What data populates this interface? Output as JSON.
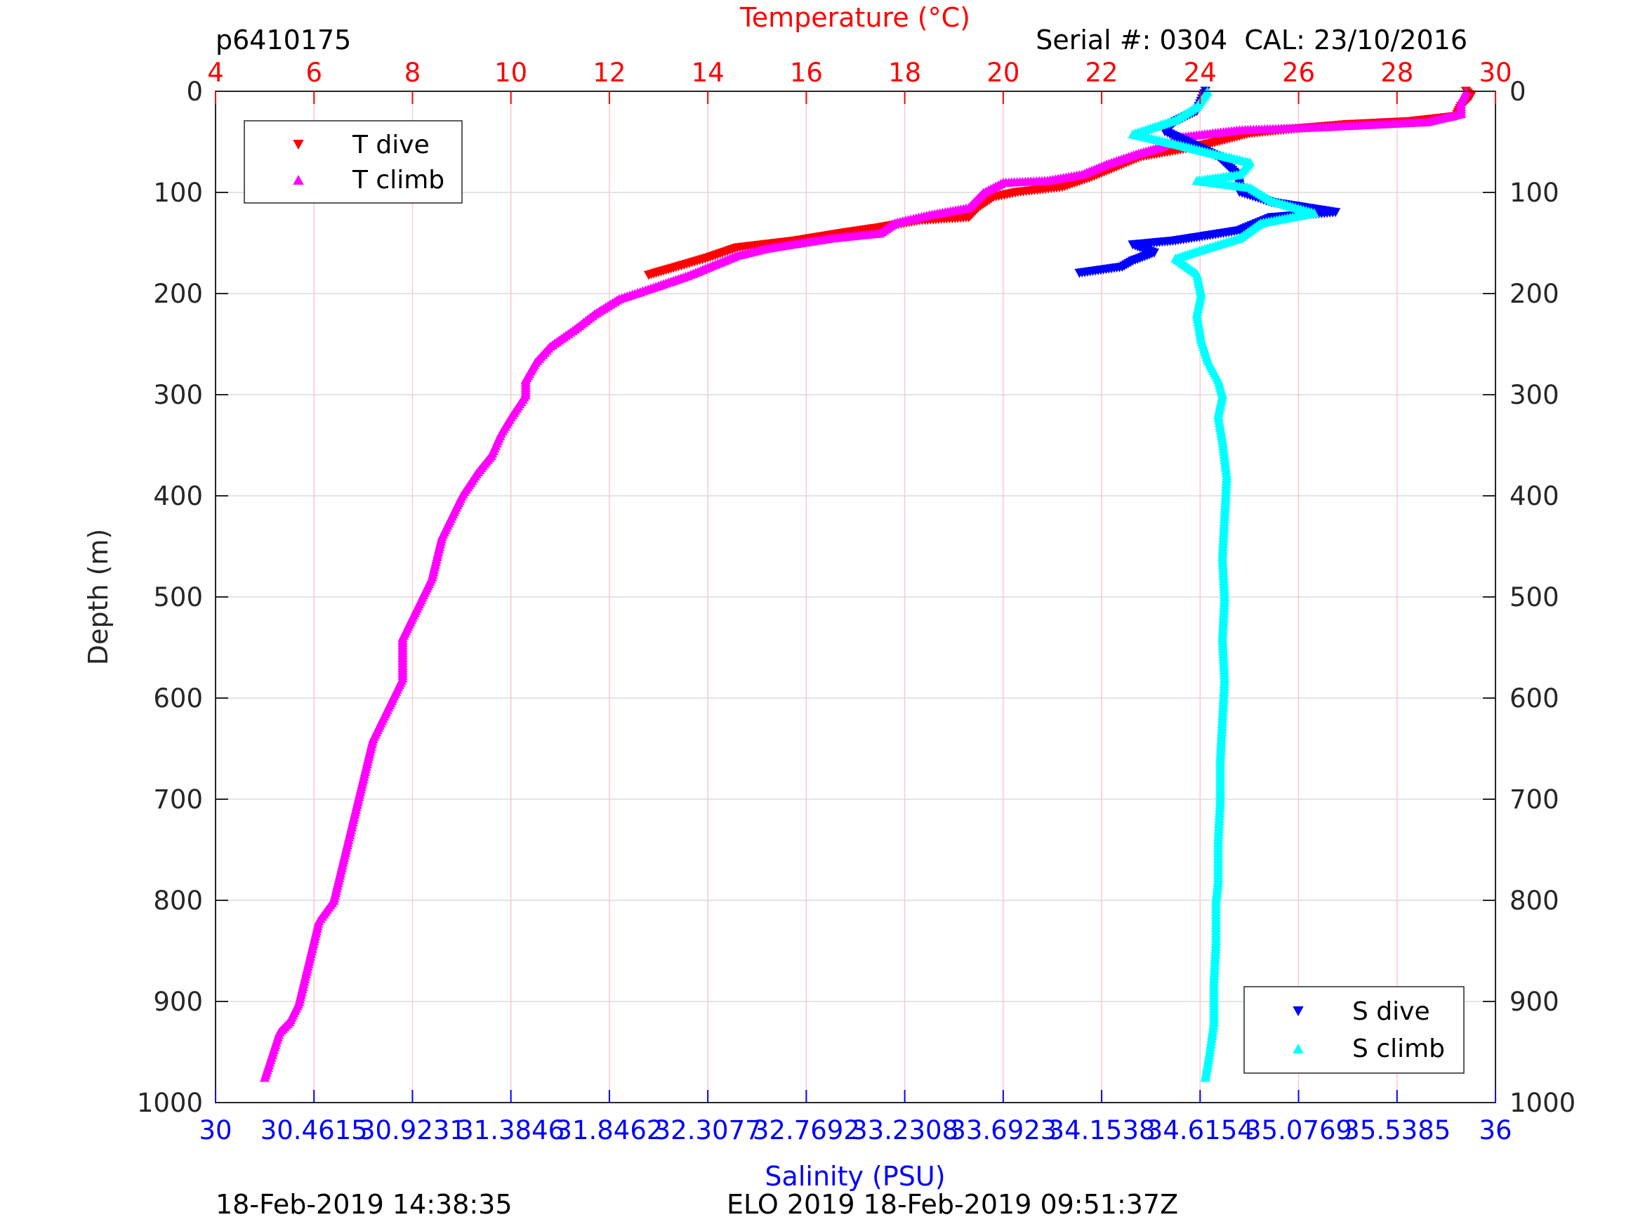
{
  "header": {
    "profile_id": "p6410175",
    "serial_cal": "Serial #: 0304  CAL: 23/10/2016"
  },
  "footer": {
    "left_timestamp": "18-Feb-2019 14:38:35",
    "mission_stamp": "ELO 2019 18-Feb-2019 09:51:37Z"
  },
  "colors": {
    "t_dive": "#ff0000",
    "t_climb": "#ff00ff",
    "s_dive": "#0000ff",
    "s_climb": "#00ffff",
    "temperature_axis": "#ff0000",
    "salinity_axis": "#0000ff",
    "depth_axis": "#262626"
  },
  "chart_data": {
    "type": "scatter",
    "y_axis": {
      "label": "Depth (m)",
      "range": [
        0,
        1000
      ],
      "reversed": true,
      "ticks": [
        "0",
        "100",
        "200",
        "300",
        "400",
        "500",
        "600",
        "700",
        "800",
        "900",
        "1000"
      ],
      "tick_values": [
        0,
        100,
        200,
        300,
        400,
        500,
        600,
        700,
        800,
        900,
        1000
      ],
      "mirrored_right": true
    },
    "x_top": {
      "label": "Temperature (°C)",
      "range": [
        4,
        30
      ],
      "ticks": [
        "4",
        "6",
        "8",
        "10",
        "12",
        "14",
        "16",
        "18",
        "20",
        "22",
        "24",
        "26",
        "28",
        "30"
      ],
      "tick_values": [
        4,
        6,
        8,
        10,
        12,
        14,
        16,
        18,
        20,
        22,
        24,
        26,
        28,
        30
      ]
    },
    "x_bottom": {
      "label": "Salinity (PSU)",
      "range": [
        30,
        36
      ],
      "ticks": [
        "30",
        "30.4615",
        "30.9231",
        "31.3846",
        "31.8462",
        "32.3077",
        "32.7692",
        "33.2308",
        "33.6923",
        "34.1538",
        "34.6154",
        "35.0769",
        "35.5385",
        "36"
      ],
      "tick_values": [
        30,
        30.4615,
        30.9231,
        31.3846,
        31.8462,
        32.3077,
        32.7692,
        33.2308,
        33.6923,
        34.1538,
        34.6154,
        35.0769,
        35.5385,
        36
      ]
    },
    "grid": true,
    "legend_temperature": {
      "position": "top-left",
      "entries": [
        "T dive",
        "T climb"
      ]
    },
    "legend_salinity": {
      "position": "bottom-right",
      "entries": [
        "S dive",
        "S climb"
      ]
    },
    "series": [
      {
        "name": "T dive",
        "axis": "x_top",
        "marker": "triangle-down",
        "points": [
          [
            29.4,
            0
          ],
          [
            29.5,
            5
          ],
          [
            29.3,
            15
          ],
          [
            29.2,
            25
          ],
          [
            28.3,
            30
          ],
          [
            27.0,
            33
          ],
          [
            25.8,
            38
          ],
          [
            25.0,
            42
          ],
          [
            24.6,
            47
          ],
          [
            24.2,
            52
          ],
          [
            23.6,
            58
          ],
          [
            22.8,
            65
          ],
          [
            22.3,
            75
          ],
          [
            21.8,
            85
          ],
          [
            21.2,
            95
          ],
          [
            20.3,
            100
          ],
          [
            19.8,
            105
          ],
          [
            19.5,
            115
          ],
          [
            19.3,
            125
          ],
          [
            18.3,
            128
          ],
          [
            17.5,
            135
          ],
          [
            16.8,
            140
          ],
          [
            15.8,
            148
          ],
          [
            14.6,
            155
          ],
          [
            14.0,
            165
          ],
          [
            13.3,
            175
          ],
          [
            12.8,
            182
          ]
        ]
      },
      {
        "name": "T climb",
        "axis": "x_top",
        "marker": "triangle-up",
        "points": [
          [
            29.4,
            0
          ],
          [
            29.3,
            10
          ],
          [
            29.3,
            22
          ],
          [
            28.6,
            30
          ],
          [
            26.5,
            35
          ],
          [
            24.8,
            38
          ],
          [
            23.6,
            45
          ],
          [
            23.2,
            55
          ],
          [
            22.7,
            62
          ],
          [
            22.1,
            72
          ],
          [
            21.6,
            82
          ],
          [
            20.9,
            88
          ],
          [
            20.0,
            90
          ],
          [
            19.8,
            95
          ],
          [
            19.6,
            100
          ],
          [
            19.3,
            115
          ],
          [
            18.5,
            122
          ],
          [
            17.8,
            130
          ],
          [
            17.5,
            140
          ],
          [
            16.5,
            145
          ],
          [
            15.2,
            155
          ],
          [
            14.6,
            162
          ],
          [
            14.1,
            172
          ],
          [
            13.6,
            182
          ],
          [
            13.0,
            192
          ],
          [
            12.2,
            205
          ],
          [
            11.7,
            220
          ],
          [
            11.3,
            235
          ],
          [
            10.8,
            252
          ],
          [
            10.5,
            268
          ],
          [
            10.3,
            285
          ],
          [
            10.3,
            300
          ],
          [
            10.0,
            322
          ],
          [
            9.8,
            338
          ],
          [
            9.6,
            360
          ],
          [
            9.3,
            378
          ],
          [
            9.0,
            400
          ],
          [
            8.8,
            420
          ],
          [
            8.6,
            440
          ],
          [
            8.5,
            460
          ],
          [
            8.4,
            480
          ],
          [
            8.2,
            500
          ],
          [
            8.0,
            520
          ],
          [
            7.8,
            540
          ],
          [
            7.8,
            560
          ],
          [
            7.8,
            580
          ],
          [
            7.6,
            600
          ],
          [
            7.4,
            620
          ],
          [
            7.2,
            640
          ],
          [
            7.1,
            660
          ],
          [
            7.0,
            680
          ],
          [
            6.9,
            700
          ],
          [
            6.8,
            720
          ],
          [
            6.7,
            740
          ],
          [
            6.6,
            760
          ],
          [
            6.5,
            780
          ],
          [
            6.4,
            800
          ],
          [
            6.1,
            820
          ],
          [
            6.0,
            840
          ],
          [
            5.9,
            860
          ],
          [
            5.8,
            880
          ],
          [
            5.7,
            900
          ],
          [
            5.5,
            920
          ],
          [
            5.3,
            930
          ],
          [
            5.2,
            945
          ],
          [
            5.1,
            960
          ],
          [
            5.0,
            975
          ]
        ]
      },
      {
        "name": "S dive",
        "axis": "x_bottom",
        "marker": "triangle-down",
        "points": [
          [
            34.64,
            0
          ],
          [
            34.6,
            20
          ],
          [
            34.5,
            30
          ],
          [
            34.45,
            40
          ],
          [
            34.6,
            55
          ],
          [
            34.7,
            65
          ],
          [
            34.75,
            75
          ],
          [
            34.8,
            85
          ],
          [
            34.8,
            100
          ],
          [
            34.95,
            110
          ],
          [
            35.25,
            120
          ],
          [
            34.95,
            125
          ],
          [
            34.8,
            138
          ],
          [
            34.5,
            148
          ],
          [
            34.3,
            152
          ],
          [
            34.4,
            160
          ],
          [
            34.3,
            168
          ],
          [
            34.25,
            174
          ],
          [
            34.05,
            180
          ]
        ]
      },
      {
        "name": "S climb",
        "axis": "x_bottom",
        "marker": "triangle-up",
        "points": [
          [
            34.65,
            0
          ],
          [
            34.6,
            15
          ],
          [
            34.5,
            28
          ],
          [
            34.3,
            42
          ],
          [
            34.5,
            52
          ],
          [
            34.65,
            60
          ],
          [
            34.85,
            70
          ],
          [
            34.8,
            82
          ],
          [
            34.6,
            88
          ],
          [
            34.85,
            95
          ],
          [
            34.95,
            108
          ],
          [
            35.15,
            120
          ],
          [
            34.9,
            130
          ],
          [
            34.8,
            145
          ],
          [
            34.6,
            158
          ],
          [
            34.5,
            165
          ],
          [
            34.6,
            180
          ],
          [
            34.62,
            200
          ],
          [
            34.6,
            220
          ],
          [
            34.62,
            245
          ],
          [
            34.65,
            265
          ],
          [
            34.7,
            285
          ],
          [
            34.72,
            300
          ],
          [
            34.7,
            320
          ],
          [
            34.72,
            345
          ],
          [
            34.74,
            380
          ],
          [
            34.73,
            420
          ],
          [
            34.72,
            460
          ],
          [
            34.73,
            500
          ],
          [
            34.72,
            540
          ],
          [
            34.73,
            580
          ],
          [
            34.72,
            620
          ],
          [
            34.71,
            660
          ],
          [
            34.71,
            700
          ],
          [
            34.7,
            740
          ],
          [
            34.7,
            780
          ],
          [
            34.69,
            800
          ],
          [
            34.69,
            840
          ],
          [
            34.68,
            880
          ],
          [
            34.68,
            920
          ],
          [
            34.66,
            950
          ],
          [
            34.64,
            975
          ]
        ]
      }
    ]
  }
}
